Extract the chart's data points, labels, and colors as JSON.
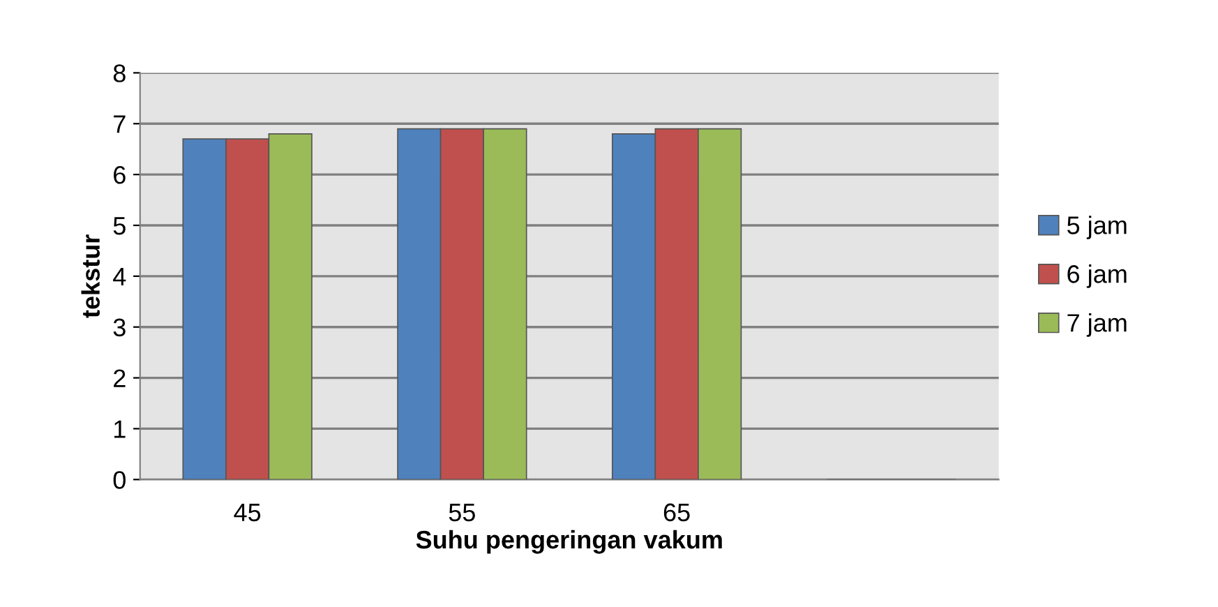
{
  "chart_data": {
    "type": "bar",
    "xlabel": "Suhu pengeringan vakum",
    "ylabel": "tekstur",
    "categories": [
      "45",
      "55",
      "65",
      null
    ],
    "series": [
      {
        "name": "5 jam",
        "color": "#4f81bd",
        "values": [
          6.7,
          6.9,
          6.8,
          null
        ]
      },
      {
        "name": "6 jam",
        "color": "#c0504d",
        "values": [
          6.7,
          6.9,
          6.9,
          null
        ]
      },
      {
        "name": "7 jam",
        "color": "#9bbb59",
        "values": [
          6.8,
          6.9,
          6.9,
          null
        ]
      }
    ],
    "ylim": [
      0,
      8
    ],
    "yticks": [
      0,
      1,
      2,
      3,
      4,
      5,
      6,
      7,
      8
    ],
    "grid": "y",
    "legend": "right"
  }
}
